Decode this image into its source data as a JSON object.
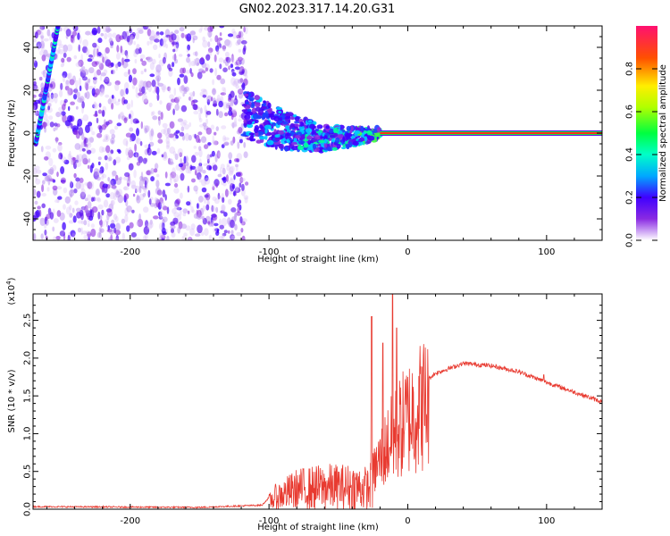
{
  "title": "GN02.2023.317.14.20.G31",
  "colors": {
    "signal_red": "#e8201a",
    "snr_red": "#e83a30",
    "colormap": [
      "#ffffff",
      "#cfa8f5",
      "#8a2be2",
      "#3f00ff",
      "#00e0ff",
      "#00ff40",
      "#ffee00",
      "#ff2020",
      "#ff1070"
    ]
  },
  "chart_data": [
    {
      "type": "heatmap",
      "xlabel": "Height of straight line (km)",
      "ylabel": "Frequency (Hz)",
      "xlim": [
        -270,
        140
      ],
      "ylim": [
        -50,
        50
      ],
      "xticks": [
        -200,
        -100,
        0,
        100
      ],
      "yticks": [
        -40,
        -20,
        0,
        20,
        40
      ],
      "colorbar": {
        "label": "Normalized spectral amplitude",
        "range": [
          0.0,
          1.0
        ],
        "ticks": [
          "0.0",
          "0.2",
          "0.4",
          "0.6",
          "0.8"
        ]
      },
      "features": {
        "noise_region_x": [
          -270,
          -120
        ],
        "converging_band_x": [
          -118,
          -20
        ],
        "steady_line_x": [
          -20,
          140
        ],
        "steady_line_freq": 0,
        "diagonal_trace": [
          [
            -268,
            -5
          ],
          [
            -258,
            25
          ],
          [
            -252,
            50
          ]
        ]
      }
    },
    {
      "type": "line",
      "xlabel": "Height of straight line (km)",
      "ylabel": "SNR (10 * v/v)",
      "y_multiplier": "(x10⁴)",
      "xlim": [
        -270,
        140
      ],
      "ylim": [
        0.0,
        2.85
      ],
      "xticks": [
        -200,
        -100,
        0,
        100
      ],
      "yticks": [
        "0.0",
        "0.5",
        "1.0",
        "1.5",
        "2.0",
        "2.5"
      ],
      "envelope": [
        [
          -270,
          0.03
        ],
        [
          -150,
          0.02
        ],
        [
          -105,
          0.05
        ],
        [
          -95,
          0.25
        ],
        [
          -80,
          0.4
        ],
        [
          -60,
          0.45
        ],
        [
          -40,
          0.45
        ],
        [
          -28,
          0.42
        ],
        [
          -22,
          0.7
        ],
        [
          -15,
          1.0
        ],
        [
          -5,
          1.3
        ],
        [
          0,
          1.45
        ],
        [
          10,
          1.65
        ],
        [
          20,
          1.8
        ],
        [
          40,
          1.93
        ],
        [
          60,
          1.9
        ],
        [
          80,
          1.82
        ],
        [
          100,
          1.68
        ],
        [
          120,
          1.55
        ],
        [
          140,
          1.42
        ]
      ],
      "spikes": [
        [
          -26,
          2.55
        ],
        [
          -18,
          2.2
        ],
        [
          -11,
          2.85
        ],
        [
          -8,
          2.4
        ]
      ]
    }
  ]
}
